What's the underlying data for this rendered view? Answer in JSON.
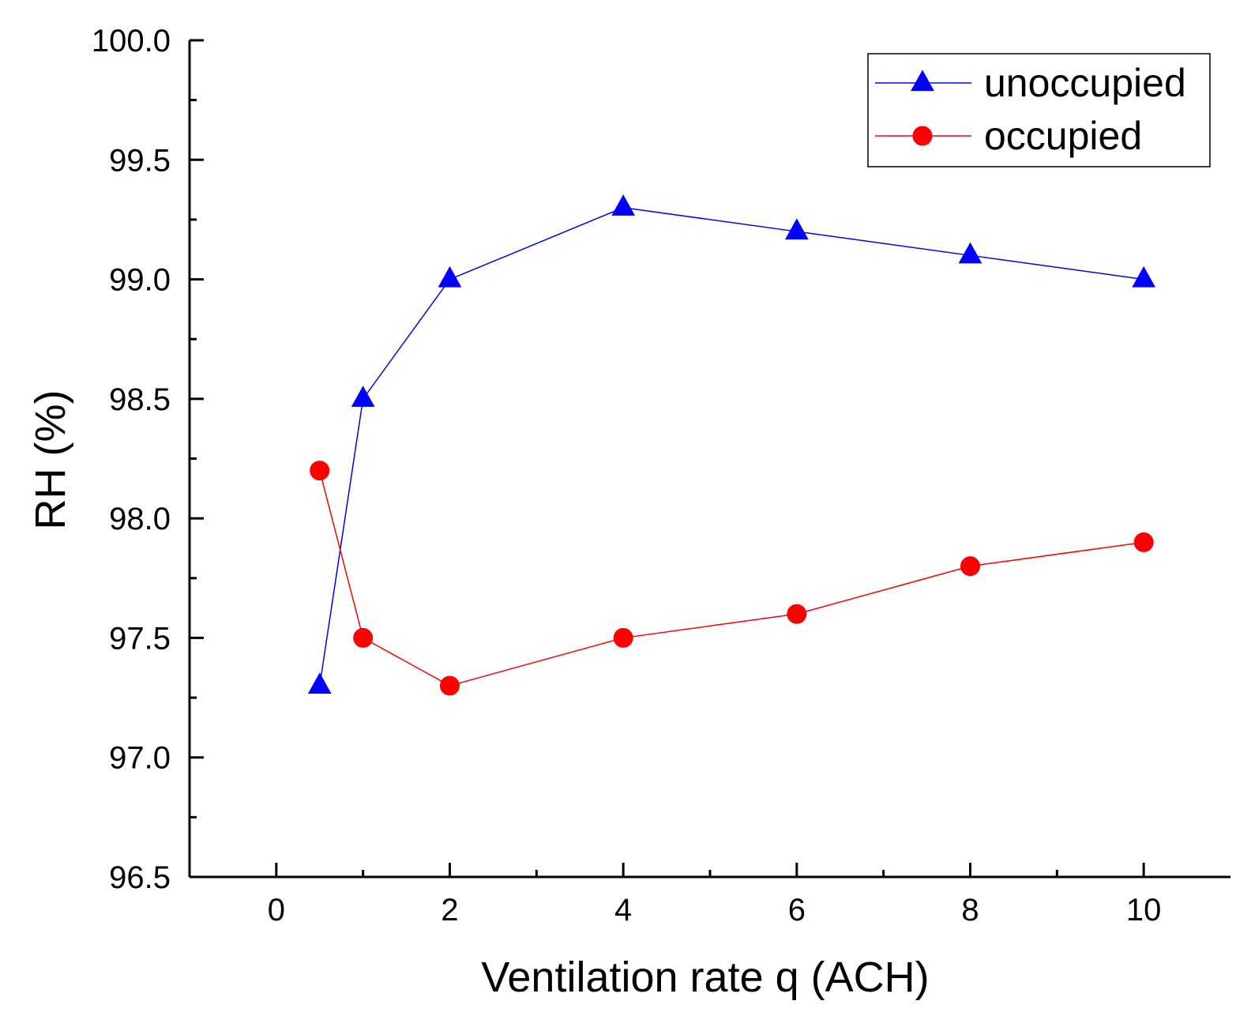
{
  "chart_data": {
    "type": "line",
    "title": "",
    "xlabel": "Ventilation rate q (ACH)",
    "ylabel": "RH (%)",
    "xlim": [
      -1,
      11
    ],
    "ylim": [
      96.5,
      100.0
    ],
    "x_major_ticks": [
      0,
      2,
      4,
      6,
      8,
      10
    ],
    "x_tick_labels": [
      "0",
      "2",
      "4",
      "6",
      "8",
      "10"
    ],
    "x_minor_ticks": [
      1,
      3,
      5,
      7,
      9
    ],
    "y_major_ticks": [
      96.5,
      97.0,
      97.5,
      98.0,
      98.5,
      99.0,
      99.5,
      100.0
    ],
    "y_tick_labels": [
      "96.5",
      "97.0",
      "97.5",
      "98.0",
      "98.5",
      "99.0",
      "99.5",
      "100.0"
    ],
    "y_minor_ticks": [
      96.75,
      97.25,
      97.75,
      98.25,
      98.75,
      99.25,
      99.75
    ],
    "grid": false,
    "legend_position": "top-right",
    "series": [
      {
        "name": "unoccupied",
        "color": "#0000ff",
        "marker": "triangle",
        "x": [
          0.5,
          1,
          2,
          4,
          6,
          8,
          10
        ],
        "y": [
          97.3,
          98.5,
          99.0,
          99.3,
          99.2,
          99.1,
          99.0
        ]
      },
      {
        "name": "occupied",
        "color": "#ff0000",
        "marker": "circle",
        "x": [
          0.5,
          1,
          2,
          4,
          6,
          8,
          10
        ],
        "y": [
          98.2,
          97.5,
          97.3,
          97.5,
          97.6,
          97.8,
          97.9
        ]
      }
    ]
  }
}
